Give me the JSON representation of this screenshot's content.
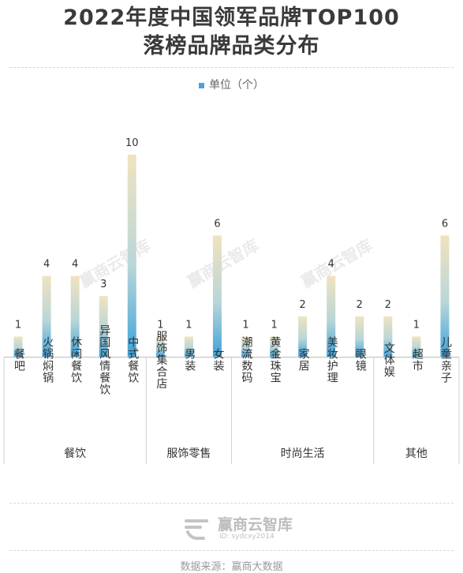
{
  "header": {
    "title_line1": "2022年度中国领军品牌TOP100",
    "title_line2": "落榜品牌品类分布"
  },
  "legend": {
    "label": "单位（个）"
  },
  "watermark": "赢商云智库",
  "footer": {
    "brand": "赢商云智库",
    "id_text": "ID: sydcxy2014",
    "source": "数据来源：赢商大数据"
  },
  "chart_data": {
    "type": "bar",
    "title": "2022年度中国领军品牌TOP100落榜品牌品类分布",
    "unit": "单位（个）",
    "categories": [
      "餐吧",
      "火锅焖锅",
      "休闲餐饮",
      "异国风情餐饮",
      "中式餐饮",
      "服饰集合店",
      "男装",
      "女装",
      "潮流数码",
      "黄金珠宝",
      "家居",
      "美妆护理",
      "眼镜",
      "文体娱",
      "超市",
      "儿童亲子"
    ],
    "values": [
      1,
      4,
      4,
      3,
      10,
      1,
      1,
      6,
      1,
      1,
      2,
      4,
      2,
      2,
      1,
      6
    ],
    "groups": [
      {
        "name": "餐饮",
        "count": 5
      },
      {
        "name": "服饰零售",
        "count": 3
      },
      {
        "name": "时尚生活",
        "count": 5
      },
      {
        "name": "其他",
        "count": 3
      }
    ],
    "colors": {
      "bar_top": "#f0e3bf",
      "bar_bottom": "#3ea3da"
    },
    "ylim": [
      0,
      10
    ],
    "grid": false
  }
}
